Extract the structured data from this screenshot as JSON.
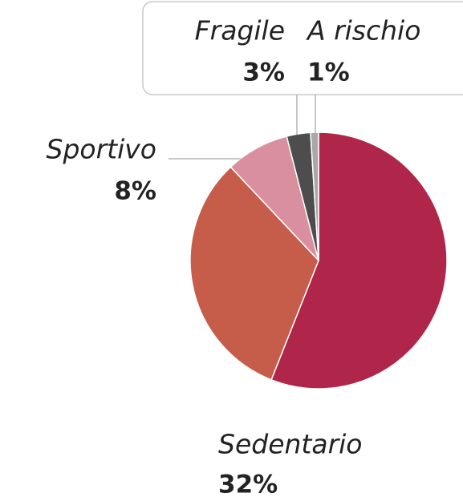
{
  "chart_data": {
    "type": "pie",
    "categories": [
      null,
      "Sedentario",
      "Sportivo",
      "Fragile",
      "A rischio"
    ],
    "values": [
      56,
      32,
      8,
      3,
      1
    ],
    "value_labels": [
      null,
      "32%",
      "8%",
      "3%",
      "1%"
    ],
    "colors": [
      "#b0264a",
      "#c65c4a",
      "#d98fa0",
      "#4d4d4d",
      "#a8a8a8"
    ]
  }
}
